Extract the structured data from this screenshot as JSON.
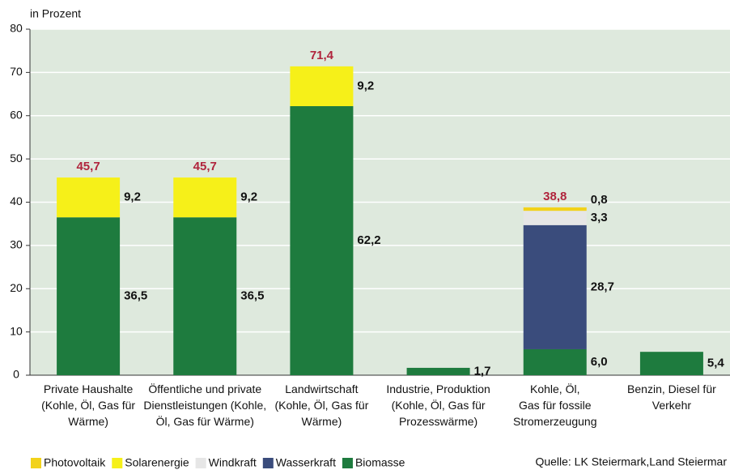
{
  "chart_data": {
    "type": "stacked_bar",
    "y_label": "in Prozent",
    "categories": [
      "Private Haushalte\n(Kohle, Öl, Gas für\nWärme)",
      "Öffentliche und private\nDienstleistungen (Kohle,\nÖl, Gas für Wärme)",
      "Landwirtschaft\n(Kohle, Öl, Gas für\nWärme)",
      "Industrie, Produktion\n(Kohle, Öl, Gas für\nProzesswärme)",
      "Kohle, Öl,\nGas für fossile\nStromerzeugung",
      "Benzin, Diesel für\nVerkehr"
    ],
    "series": [
      {
        "name": "Biomasse",
        "color": "#1e7b3e",
        "values": [
          36.5,
          36.5,
          62.2,
          1.7,
          6.0,
          5.4
        ],
        "value_labels": [
          "36,5",
          "36,5",
          "62,2",
          "1,7",
          "6,0",
          "5,4"
        ]
      },
      {
        "name": "Wasserkraft",
        "color": "#3a4c7c",
        "values": [
          null,
          null,
          null,
          null,
          28.7,
          null
        ],
        "value_labels": [
          null,
          null,
          null,
          null,
          "28,7",
          null
        ]
      },
      {
        "name": "Windkraft",
        "color": "#e6e6e6",
        "values": [
          null,
          null,
          null,
          null,
          3.3,
          null
        ],
        "value_labels": [
          null,
          null,
          null,
          null,
          "3,3",
          null
        ]
      },
      {
        "name": "Solarenergie",
        "color": "#f6f019",
        "values": [
          9.2,
          9.2,
          9.2,
          null,
          null,
          null
        ],
        "value_labels": [
          "9,2",
          "9,2",
          "9,2",
          null,
          null,
          null
        ]
      },
      {
        "name": "Photovoltaik",
        "color": "#f2d21a",
        "values": [
          null,
          null,
          null,
          null,
          0.8,
          null
        ],
        "value_labels": [
          null,
          null,
          null,
          null,
          "0,8",
          null
        ]
      }
    ],
    "legend_order": [
      4,
      3,
      2,
      1,
      0
    ],
    "totals": [
      45.7,
      45.7,
      71.4,
      null,
      38.8,
      null
    ],
    "total_labels": [
      "45,7",
      "45,7",
      "71,4",
      null,
      "38,8",
      null
    ],
    "total_color": "#b0243c",
    "ylim": [
      0,
      80
    ],
    "yticks": [
      0,
      10,
      20,
      30,
      40,
      50,
      60,
      70,
      80
    ],
    "grid": true,
    "source": "Quelle: LK Steiermark,Land Steiermar"
  }
}
